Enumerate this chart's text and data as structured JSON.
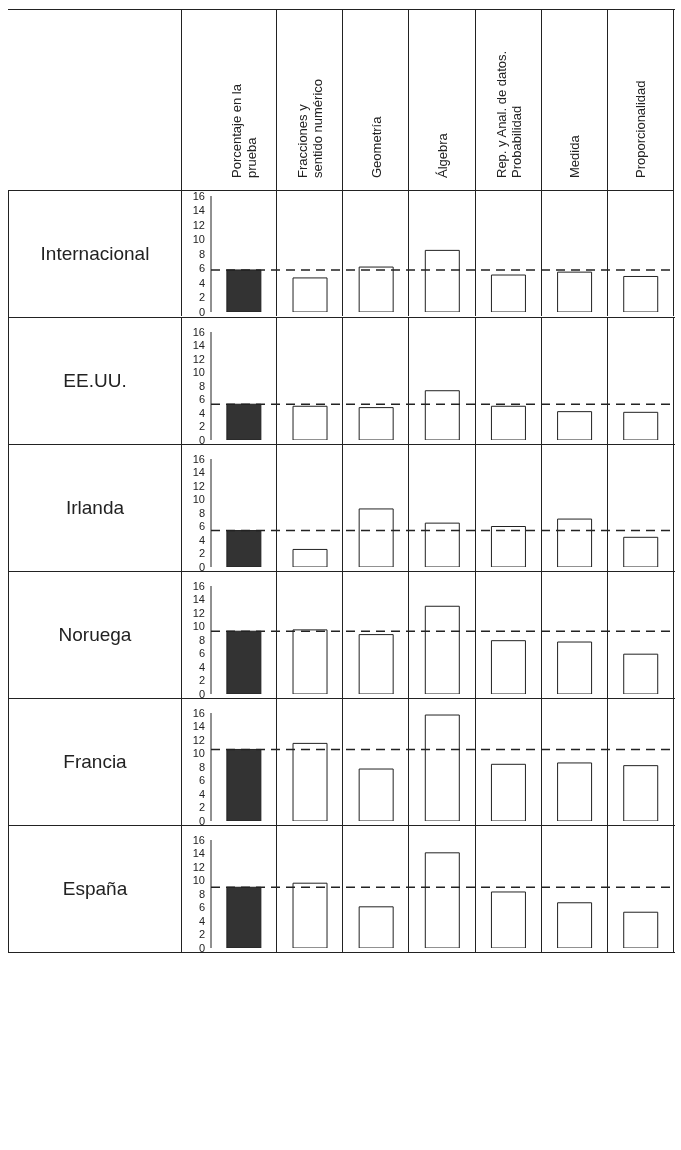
{
  "chart_data": [
    {
      "type": "bar",
      "title": "Internacional",
      "categories": [
        "Porcentaje en la\nprueba",
        "Fracciones y\nsentido numérico",
        "Geometría",
        "Álgebra",
        "Rep. y Anal. de datos.\nProbabilidad",
        "Medida",
        "Proporcionalidad"
      ],
      "values": [
        5.8,
        4.7,
        6.2,
        8.5,
        5.1,
        5.5,
        4.9
      ],
      "colors": [
        "#333333",
        "#ffffff",
        "#ffffff",
        "#ffffff",
        "#ffffff",
        "#ffffff",
        "#ffffff"
      ],
      "ylim": [
        0,
        16
      ],
      "yticks": [
        0,
        2,
        4,
        6,
        8,
        10,
        12,
        14,
        16
      ],
      "ref_lines": [
        {
          "axis": "y",
          "value": 5.8,
          "line_style": "dashed",
          "color": "#222222"
        }
      ]
    },
    {
      "type": "bar",
      "title": "EE.UU.",
      "values": [
        5.3,
        5.0,
        4.8,
        7.3,
        5.0,
        4.2,
        4.1
      ],
      "colors": [
        "#333333",
        "#ffffff",
        "#ffffff",
        "#ffffff",
        "#ffffff",
        "#ffffff",
        "#ffffff"
      ],
      "ylim": [
        0,
        16
      ],
      "yticks": [
        0,
        2,
        4,
        6,
        8,
        10,
        12,
        14,
        16
      ],
      "ref_lines": [
        {
          "axis": "y",
          "value": 5.3,
          "line_style": "dashed",
          "color": "#222222"
        }
      ],
      "tick_labels": "y"
    },
    {
      "type": "bar",
      "title": "Irlanda",
      "values": [
        5.4,
        2.6,
        8.6,
        6.5,
        6.0,
        7.1,
        4.4
      ],
      "colors": [
        "#333333",
        "#ffffff",
        "#ffffff",
        "#ffffff",
        "#ffffff",
        "#ffffff",
        "#ffffff"
      ],
      "ylim": [
        0,
        16
      ],
      "yticks": [
        0,
        2,
        4,
        6,
        8,
        10,
        12,
        14,
        16
      ],
      "ref_lines": [
        {
          "axis": "y",
          "value": 5.4,
          "line_style": "dashed",
          "color": "#222222"
        }
      ],
      "tick_labels": "y"
    },
    {
      "type": "bar",
      "title": "Noruega",
      "values": [
        9.3,
        9.5,
        8.8,
        13.0,
        7.9,
        7.7,
        5.9
      ],
      "colors": [
        "#333333",
        "#ffffff",
        "#ffffff",
        "#ffffff",
        "#ffffff",
        "#ffffff",
        "#ffffff"
      ],
      "ylim": [
        0,
        16
      ],
      "yticks": [
        0,
        2,
        4,
        6,
        8,
        10,
        12,
        14,
        16
      ],
      "ref_lines": [
        {
          "axis": "y",
          "value": 9.3,
          "line_style": "dashed",
          "color": "#222222"
        }
      ],
      "tick_labels": "y"
    },
    {
      "type": "bar",
      "title": "Francia",
      "values": [
        10.6,
        11.5,
        7.7,
        15.7,
        8.4,
        8.6,
        8.2
      ],
      "colors": [
        "#333333",
        "#ffffff",
        "#ffffff",
        "#ffffff",
        "#ffffff",
        "#ffffff",
        "#ffffff"
      ],
      "ylim": [
        0,
        16
      ],
      "yticks": [
        0,
        2,
        4,
        6,
        8,
        10,
        12,
        14,
        16
      ],
      "ref_lines": [
        {
          "axis": "y",
          "value": 10.6,
          "line_style": "dashed",
          "color": "#222222"
        }
      ],
      "tick_labels": "y"
    },
    {
      "type": "bar",
      "title": "España",
      "values": [
        9.0,
        9.6,
        6.1,
        14.1,
        8.3,
        6.7,
        5.3
      ],
      "colors": [
        "#333333",
        "#ffffff",
        "#ffffff",
        "#ffffff",
        "#ffffff",
        "#ffffff",
        "#ffffff"
      ],
      "ylim": [
        0,
        16
      ],
      "yticks": [
        0,
        2,
        4,
        6,
        8,
        10,
        12,
        14,
        16
      ],
      "ref_lines": [
        {
          "axis": "y",
          "value": 9.0,
          "line_style": "dashed",
          "color": "#222222"
        }
      ],
      "tick_labels": "y"
    }
  ]
}
